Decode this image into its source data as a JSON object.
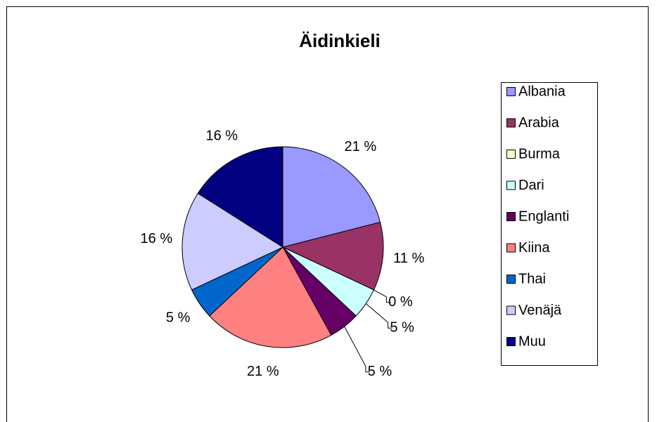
{
  "chart_data": {
    "type": "pie",
    "title": "Äidinkieli",
    "categories": [
      "Albania",
      "Arabia",
      "Burma",
      "Dari",
      "Englanti",
      "Kiina",
      "Thai",
      "Venäjä",
      "Muu"
    ],
    "values": [
      21,
      11,
      0,
      5,
      5,
      21,
      5,
      16,
      16
    ],
    "value_labels": [
      "21 %",
      "11 %",
      "0 %",
      "5 %",
      "5 %",
      "21 %",
      "5 %",
      "16 %",
      "16 %"
    ],
    "colors": [
      "#9999ff",
      "#993366",
      "#ffffcc",
      "#ccffff",
      "#660066",
      "#ff8080",
      "#0066cc",
      "#ccccff",
      "#000080"
    ],
    "legend": "right"
  }
}
